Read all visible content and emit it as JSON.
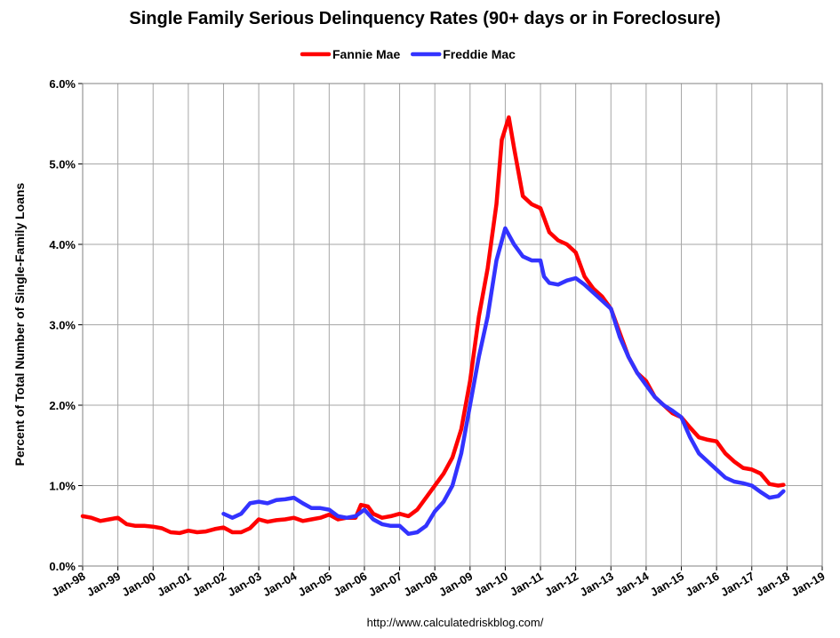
{
  "chart_data": {
    "type": "line",
    "title": "Single Family Serious Delinquency Rates (90+ days or in Foreclosure)",
    "y_label": "Percent of Total Number of Single-Family Loans",
    "source": "http://www.calculatedriskblog.com/",
    "grid": true,
    "legend": "top",
    "xlim": [
      1998,
      2019
    ],
    "xticks": [
      {
        "value": 1998,
        "label": "Jan-98"
      },
      {
        "value": 1999,
        "label": "Jan-99"
      },
      {
        "value": 2000,
        "label": "Jan-00"
      },
      {
        "value": 2001,
        "label": "Jan-01"
      },
      {
        "value": 2002,
        "label": "Jan-02"
      },
      {
        "value": 2003,
        "label": "Jan-03"
      },
      {
        "value": 2004,
        "label": "Jan-04"
      },
      {
        "value": 2005,
        "label": "Jan-05"
      },
      {
        "value": 2006,
        "label": "Jan-06"
      },
      {
        "value": 2007,
        "label": "Jan-07"
      },
      {
        "value": 2008,
        "label": "Jan-08"
      },
      {
        "value": 2009,
        "label": "Jan-09"
      },
      {
        "value": 2010,
        "label": "Jan-10"
      },
      {
        "value": 2011,
        "label": "Jan-11"
      },
      {
        "value": 2012,
        "label": "Jan-12"
      },
      {
        "value": 2013,
        "label": "Jan-13"
      },
      {
        "value": 2014,
        "label": "Jan-14"
      },
      {
        "value": 2015,
        "label": "Jan-15"
      },
      {
        "value": 2016,
        "label": "Jan-16"
      },
      {
        "value": 2017,
        "label": "Jan-17"
      },
      {
        "value": 2018,
        "label": "Jan-18"
      },
      {
        "value": 2019,
        "label": "Jan-19"
      }
    ],
    "ylim": [
      0,
      6
    ],
    "yticks": [
      {
        "value": 0,
        "label": "0.0%"
      },
      {
        "value": 1,
        "label": "1.0%"
      },
      {
        "value": 2,
        "label": "2.0%"
      },
      {
        "value": 3,
        "label": "3.0%"
      },
      {
        "value": 4,
        "label": "4.0%"
      },
      {
        "value": 5,
        "label": "5.0%"
      },
      {
        "value": 6,
        "label": "6.0%"
      }
    ],
    "series": [
      {
        "name": "Fannie Mae",
        "color": "#ff0000",
        "x": [
          1998.0,
          1998.25,
          1998.5,
          1998.75,
          1999.0,
          1999.25,
          1999.5,
          1999.75,
          2000.0,
          2000.25,
          2000.5,
          2000.75,
          2001.0,
          2001.25,
          2001.5,
          2001.75,
          2002.0,
          2002.25,
          2002.5,
          2002.75,
          2003.0,
          2003.25,
          2003.5,
          2003.75,
          2004.0,
          2004.25,
          2004.5,
          2004.75,
          2005.0,
          2005.25,
          2005.5,
          2005.75,
          2005.9,
          2006.1,
          2006.25,
          2006.5,
          2006.75,
          2007.0,
          2007.25,
          2007.5,
          2007.75,
          2008.0,
          2008.25,
          2008.5,
          2008.75,
          2009.0,
          2009.25,
          2009.5,
          2009.75,
          2009.9,
          2010.1,
          2010.25,
          2010.5,
          2010.75,
          2011.0,
          2011.25,
          2011.5,
          2011.75,
          2012.0,
          2012.25,
          2012.5,
          2012.75,
          2013.0,
          2013.25,
          2013.5,
          2013.75,
          2014.0,
          2014.25,
          2014.5,
          2014.75,
          2015.0,
          2015.25,
          2015.5,
          2015.75,
          2016.0,
          2016.25,
          2016.5,
          2016.75,
          2017.0,
          2017.25,
          2017.5,
          2017.75,
          2017.9
        ],
        "values": [
          0.62,
          0.6,
          0.56,
          0.58,
          0.6,
          0.52,
          0.5,
          0.5,
          0.49,
          0.47,
          0.42,
          0.41,
          0.44,
          0.42,
          0.43,
          0.46,
          0.48,
          0.42,
          0.42,
          0.47,
          0.58,
          0.55,
          0.57,
          0.58,
          0.6,
          0.56,
          0.58,
          0.6,
          0.64,
          0.58,
          0.6,
          0.6,
          0.76,
          0.74,
          0.65,
          0.6,
          0.62,
          0.65,
          0.62,
          0.7,
          0.85,
          1.0,
          1.15,
          1.35,
          1.7,
          2.3,
          3.1,
          3.7,
          4.5,
          5.3,
          5.58,
          5.2,
          4.6,
          4.5,
          4.45,
          4.15,
          4.05,
          4.0,
          3.9,
          3.6,
          3.45,
          3.35,
          3.2,
          2.9,
          2.6,
          2.4,
          2.3,
          2.1,
          2.0,
          1.9,
          1.85,
          1.72,
          1.6,
          1.57,
          1.55,
          1.4,
          1.3,
          1.22,
          1.2,
          1.15,
          1.02,
          1.0,
          1.01
        ]
      },
      {
        "name": "Freddie Mac",
        "color": "#3333ff",
        "x": [
          2002.0,
          2002.25,
          2002.5,
          2002.75,
          2003.0,
          2003.25,
          2003.5,
          2003.75,
          2004.0,
          2004.25,
          2004.5,
          2004.75,
          2005.0,
          2005.25,
          2005.5,
          2005.75,
          2006.0,
          2006.25,
          2006.5,
          2006.75,
          2007.0,
          2007.25,
          2007.5,
          2007.75,
          2008.0,
          2008.25,
          2008.5,
          2008.75,
          2009.0,
          2009.25,
          2009.5,
          2009.75,
          2010.0,
          2010.25,
          2010.5,
          2010.75,
          2011.0,
          2011.1,
          2011.25,
          2011.5,
          2011.75,
          2012.0,
          2012.25,
          2012.5,
          2012.75,
          2013.0,
          2013.25,
          2013.5,
          2013.75,
          2014.0,
          2014.25,
          2014.5,
          2014.75,
          2015.0,
          2015.25,
          2015.5,
          2015.75,
          2016.0,
          2016.25,
          2016.5,
          2016.75,
          2017.0,
          2017.25,
          2017.5,
          2017.75,
          2017.9
        ],
        "values": [
          0.65,
          0.6,
          0.65,
          0.78,
          0.8,
          0.78,
          0.82,
          0.83,
          0.85,
          0.78,
          0.72,
          0.72,
          0.7,
          0.62,
          0.6,
          0.62,
          0.7,
          0.58,
          0.52,
          0.5,
          0.5,
          0.4,
          0.42,
          0.5,
          0.68,
          0.8,
          1.0,
          1.4,
          2.0,
          2.6,
          3.1,
          3.8,
          4.2,
          4.0,
          3.85,
          3.8,
          3.8,
          3.6,
          3.52,
          3.5,
          3.55,
          3.58,
          3.5,
          3.4,
          3.3,
          3.2,
          2.85,
          2.6,
          2.4,
          2.25,
          2.1,
          2.0,
          1.93,
          1.85,
          1.6,
          1.4,
          1.3,
          1.2,
          1.1,
          1.05,
          1.03,
          1.0,
          0.92,
          0.85,
          0.87,
          0.93
        ]
      }
    ]
  }
}
